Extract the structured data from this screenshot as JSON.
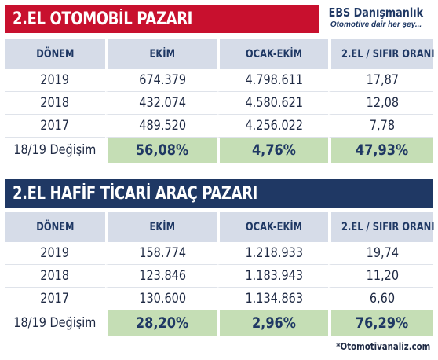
{
  "section1": {
    "title": "2.EL OTOMOBİL PAZARI",
    "headers": [
      "DÖNEM",
      "EKİM",
      "OCAK-EKİM",
      "2.EL / SIFIR ORANI"
    ],
    "rows": [
      [
        "2019",
        "674.379",
        "4.798.611",
        "17,87"
      ],
      [
        "2018",
        "432.074",
        "4.580.621",
        "12,08"
      ],
      [
        "2017",
        "489.520",
        "4.256.022",
        "7,78"
      ]
    ],
    "change": [
      "18/19 Değişim",
      "56,08%",
      "4,76%",
      "47,93%"
    ]
  },
  "brand": {
    "name": "EBS Danışmanlık",
    "tagline": "Otomotive dair her şey..."
  },
  "section2": {
    "title": "2.EL HAFİF TİCARİ ARAÇ PAZARI",
    "headers": [
      "DÖNEM",
      "EKİM",
      "OCAK-EKİM",
      "2.EL / SIFIR ORANI"
    ],
    "rows": [
      [
        "2019",
        "158.774",
        "1.218.933",
        "19,74"
      ],
      [
        "2018",
        "123.846",
        "1.183.943",
        "11,20"
      ],
      [
        "2017",
        "130.600",
        "1.134.863",
        "6,60"
      ]
    ],
    "change": [
      "18/19 Değişim",
      "28,20%",
      "2,96%",
      "76,29%"
    ]
  },
  "source": "*Otomotivanaliz.com",
  "colors": {
    "red_banner": "#c8102e",
    "navy_banner": "#1f3864",
    "header_fill": "#d6dce8",
    "highlight_fill": "#c5deb5"
  }
}
